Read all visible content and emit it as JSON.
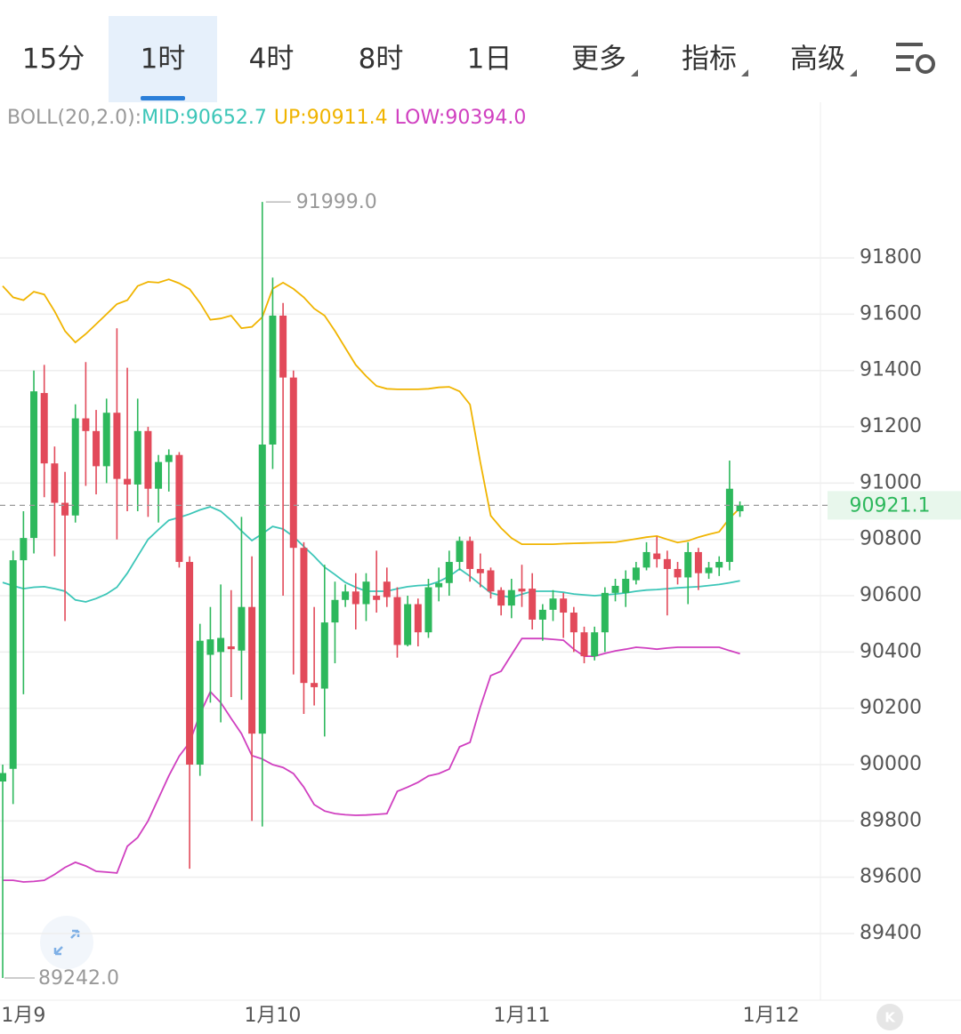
{
  "toolbar": {
    "tabs": [
      "15分",
      "1时",
      "4时",
      "8时",
      "1日",
      "更多",
      "指标",
      "高级"
    ],
    "selected": 1
  },
  "chart_data": {
    "type": "candlestick",
    "indicator_label": "BOLL(20,2.0):",
    "ylim": [
      89163,
      92353
    ],
    "yticks": [
      89400,
      89600,
      89800,
      90000,
      90200,
      90400,
      90600,
      90800,
      91000,
      91200,
      91400,
      91600,
      91800
    ],
    "xlim": [
      -0.26,
      78.75
    ],
    "xticks": [
      {
        "value": 2,
        "label": "1月9"
      },
      {
        "value": 26,
        "label": "1月10"
      },
      {
        "value": 50,
        "label": "1月11"
      },
      {
        "value": 74,
        "label": "1月12"
      }
    ],
    "grid": true,
    "up_color": "#2db85c",
    "down_color": "#e24a5a",
    "open": [
      89940,
      89985,
      90726,
      90805,
      91320,
      91070,
      90930,
      90885,
      91230,
      91185,
      91060,
      91250,
      91015,
      90995,
      91185,
      90980,
      91075,
      91100,
      90720,
      90000,
      90390,
      90400,
      90420,
      90405,
      90560,
      90110,
      91137,
      91595,
      91375,
      90770,
      90290,
      90270,
      90505,
      90585,
      90615,
      90570,
      90600,
      90650,
      90595,
      90425,
      90570,
      90470,
      90630,
      90645,
      90720,
      90795,
      90695,
      90690,
      90620,
      90565,
      90625,
      90625,
      90515,
      90550,
      90590,
      90540,
      90470,
      90385,
      90470,
      90610,
      90610,
      90655,
      90700,
      90750,
      90730,
      90695,
      90665,
      90755,
      90680,
      90700,
      90720,
      90900
    ],
    "high": [
      90000,
      90760,
      90900,
      91400,
      91420,
      91130,
      91040,
      91280,
      91430,
      91260,
      91300,
      91550,
      91410,
      91300,
      91200,
      91100,
      91120,
      91110,
      90740,
      90500,
      90560,
      90640,
      90620,
      90880,
      90740,
      91999,
      91730,
      91640,
      91400,
      90790,
      90560,
      90710,
      90650,
      90640,
      90680,
      90680,
      90760,
      90700,
      90630,
      90600,
      90590,
      90660,
      90700,
      90760,
      90810,
      90810,
      90750,
      90700,
      90630,
      90660,
      90710,
      90680,
      90570,
      90620,
      90610,
      90560,
      90490,
      90490,
      90630,
      90660,
      90690,
      90720,
      90790,
      90810,
      90760,
      90720,
      90790,
      90770,
      90720,
      90740,
      91080,
      90935
    ],
    "low": [
      89242,
      89860,
      90250,
      90750,
      90950,
      90740,
      90510,
      90860,
      90990,
      90960,
      91000,
      90800,
      90900,
      90900,
      90880,
      90860,
      90970,
      90700,
      89630,
      89960,
      90220,
      90150,
      90240,
      90230,
      89800,
      89780,
      91050,
      90600,
      90320,
      90180,
      90210,
      90100,
      90360,
      90560,
      90480,
      90510,
      90540,
      90560,
      90380,
      90420,
      90420,
      90450,
      90580,
      90600,
      90690,
      90650,
      90630,
      90590,
      90530,
      90520,
      90560,
      90480,
      90440,
      90510,
      90450,
      90400,
      90360,
      90370,
      90400,
      90580,
      90560,
      90640,
      90690,
      90700,
      90530,
      90640,
      90570,
      90620,
      90660,
      90670,
      90690,
      90880
    ],
    "close": [
      89970,
      90726,
      90805,
      91326,
      91070,
      90930,
      90885,
      91230,
      91185,
      91060,
      91250,
      91015,
      90995,
      91185,
      90980,
      91075,
      91100,
      90720,
      90000,
      90440,
      90445,
      90450,
      90410,
      90560,
      90110,
      91137,
      91595,
      91375,
      90770,
      90290,
      90275,
      90505,
      90585,
      90615,
      90570,
      90650,
      90585,
      90595,
      90425,
      90570,
      90470,
      90630,
      90645,
      90720,
      90795,
      90695,
      90680,
      90615,
      90565,
      90620,
      90615,
      90515,
      90550,
      90590,
      90540,
      90470,
      90385,
      90470,
      90610,
      90635,
      90660,
      90700,
      90755,
      90730,
      90695,
      90665,
      90755,
      90680,
      90700,
      90720,
      90980,
      90921
    ],
    "series": [
      {
        "name": "MID:90652.7",
        "color": "#3cc6b8",
        "values": [
          90647,
          90635,
          90625,
          90630,
          90632,
          90625,
          90616,
          90585,
          90578,
          90590,
          90606,
          90630,
          90680,
          90740,
          90800,
          90835,
          90868,
          90878,
          90890,
          90905,
          90916,
          90900,
          90868,
          90830,
          90796,
          90820,
          90846,
          90837,
          90810,
          90775,
          90740,
          90701,
          90675,
          90647,
          90630,
          90616,
          90616,
          90616,
          90625,
          90632,
          90636,
          90638,
          90650,
          90669,
          90695,
          90669,
          90640,
          90610,
          90600,
          90594,
          90605,
          90616,
          90616,
          90616,
          90612,
          90606,
          90603,
          90600,
          90603,
          90606,
          90610,
          90616,
          90620,
          90622,
          90625,
          90628,
          90630,
          90632,
          90636,
          90640,
          90646,
          90652.7
        ]
      },
      {
        "name": "UP:90911.4",
        "color": "#f0b400",
        "values": [
          91700,
          91660,
          91650,
          91680,
          91670,
          91610,
          91540,
          91500,
          91530,
          91565,
          91600,
          91636,
          91650,
          91700,
          91715,
          91712,
          91724,
          91710,
          91689,
          91640,
          91580,
          91585,
          91595,
          91550,
          91555,
          91590,
          91690,
          91712,
          91690,
          91660,
          91620,
          91595,
          91540,
          91480,
          91420,
          91380,
          91345,
          91335,
          91333,
          91333,
          91333,
          91335,
          91340,
          91342,
          91326,
          91279,
          91074,
          90884,
          90840,
          90805,
          90783,
          90783,
          90783,
          90783,
          90785,
          90786,
          90787,
          90788,
          90789,
          90790,
          90796,
          90802,
          90808,
          90812,
          90800,
          90789,
          90795,
          90808,
          90818,
          90827,
          90875,
          90911.4
        ]
      },
      {
        "name": "LOW:90394.0",
        "color": "#d040c0",
        "values": [
          89589,
          89589,
          89583,
          89585,
          89589,
          89610,
          89635,
          89653,
          89640,
          89621,
          89618,
          89615,
          89710,
          89741,
          89800,
          89880,
          89960,
          90030,
          90079,
          90180,
          90259,
          90220,
          90164,
          90110,
          90032,
          90020,
          90000,
          89990,
          89968,
          89920,
          89858,
          89835,
          89826,
          89822,
          89820,
          89821,
          89823,
          89826,
          89905,
          89920,
          89937,
          89960,
          89968,
          89984,
          90063,
          90079,
          90205,
          90316,
          90332,
          90390,
          90448,
          90448,
          90448,
          90445,
          90442,
          90410,
          90385,
          90385,
          90395,
          90404,
          90410,
          90417,
          90414,
          90410,
          90414,
          90417,
          90417,
          90417,
          90417,
          90417,
          90405,
          90394
        ]
      }
    ],
    "last_price": 90921.1,
    "max_label": {
      "value": 91999,
      "label": "91999.0"
    },
    "min_label": {
      "value": 89242,
      "label": "89242.0"
    }
  }
}
